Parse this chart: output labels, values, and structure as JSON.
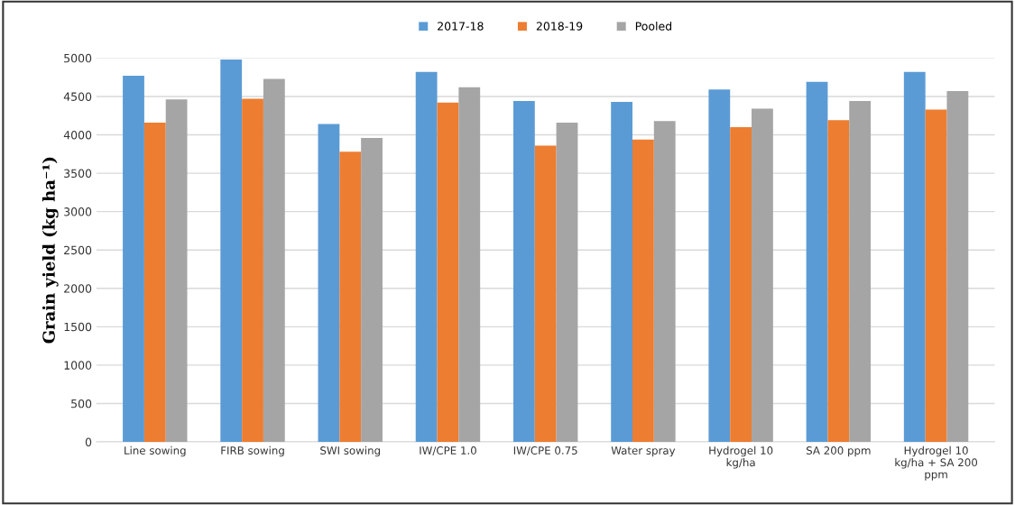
{
  "chart_data": {
    "type": "bar",
    "ylabel": "Grain yield (kg ha⁻¹)",
    "categories": [
      "Line sowing",
      "FIRB sowing",
      "SWI sowing",
      "IW/CPE 1.0",
      "IW/CPE 0.75",
      "Water spray",
      "Hydrogel 10\nkg/ha",
      "SA 200 ppm",
      "Hydrogel 10\nkg/ha + SA 200\nppm"
    ],
    "series": [
      {
        "name": "2017-18",
        "color": "#5b9bd5",
        "values": [
          4770,
          4980,
          4140,
          4820,
          4440,
          4430,
          4590,
          4690,
          4820
        ]
      },
      {
        "name": "2018-19",
        "color": "#ed7d31",
        "values": [
          4160,
          4470,
          3780,
          4420,
          3860,
          3940,
          4100,
          4190,
          4330
        ]
      },
      {
        "name": "Pooled",
        "color": "#a5a5a5",
        "values": [
          4460,
          4730,
          3960,
          4620,
          4160,
          4180,
          4340,
          4440,
          4570
        ]
      }
    ],
    "ylim": [
      0,
      5000
    ],
    "yticks": [
      0,
      500,
      1000,
      1500,
      2000,
      2500,
      3000,
      3500,
      4000,
      4500,
      5000
    ],
    "grid": "y",
    "legend": "top"
  }
}
